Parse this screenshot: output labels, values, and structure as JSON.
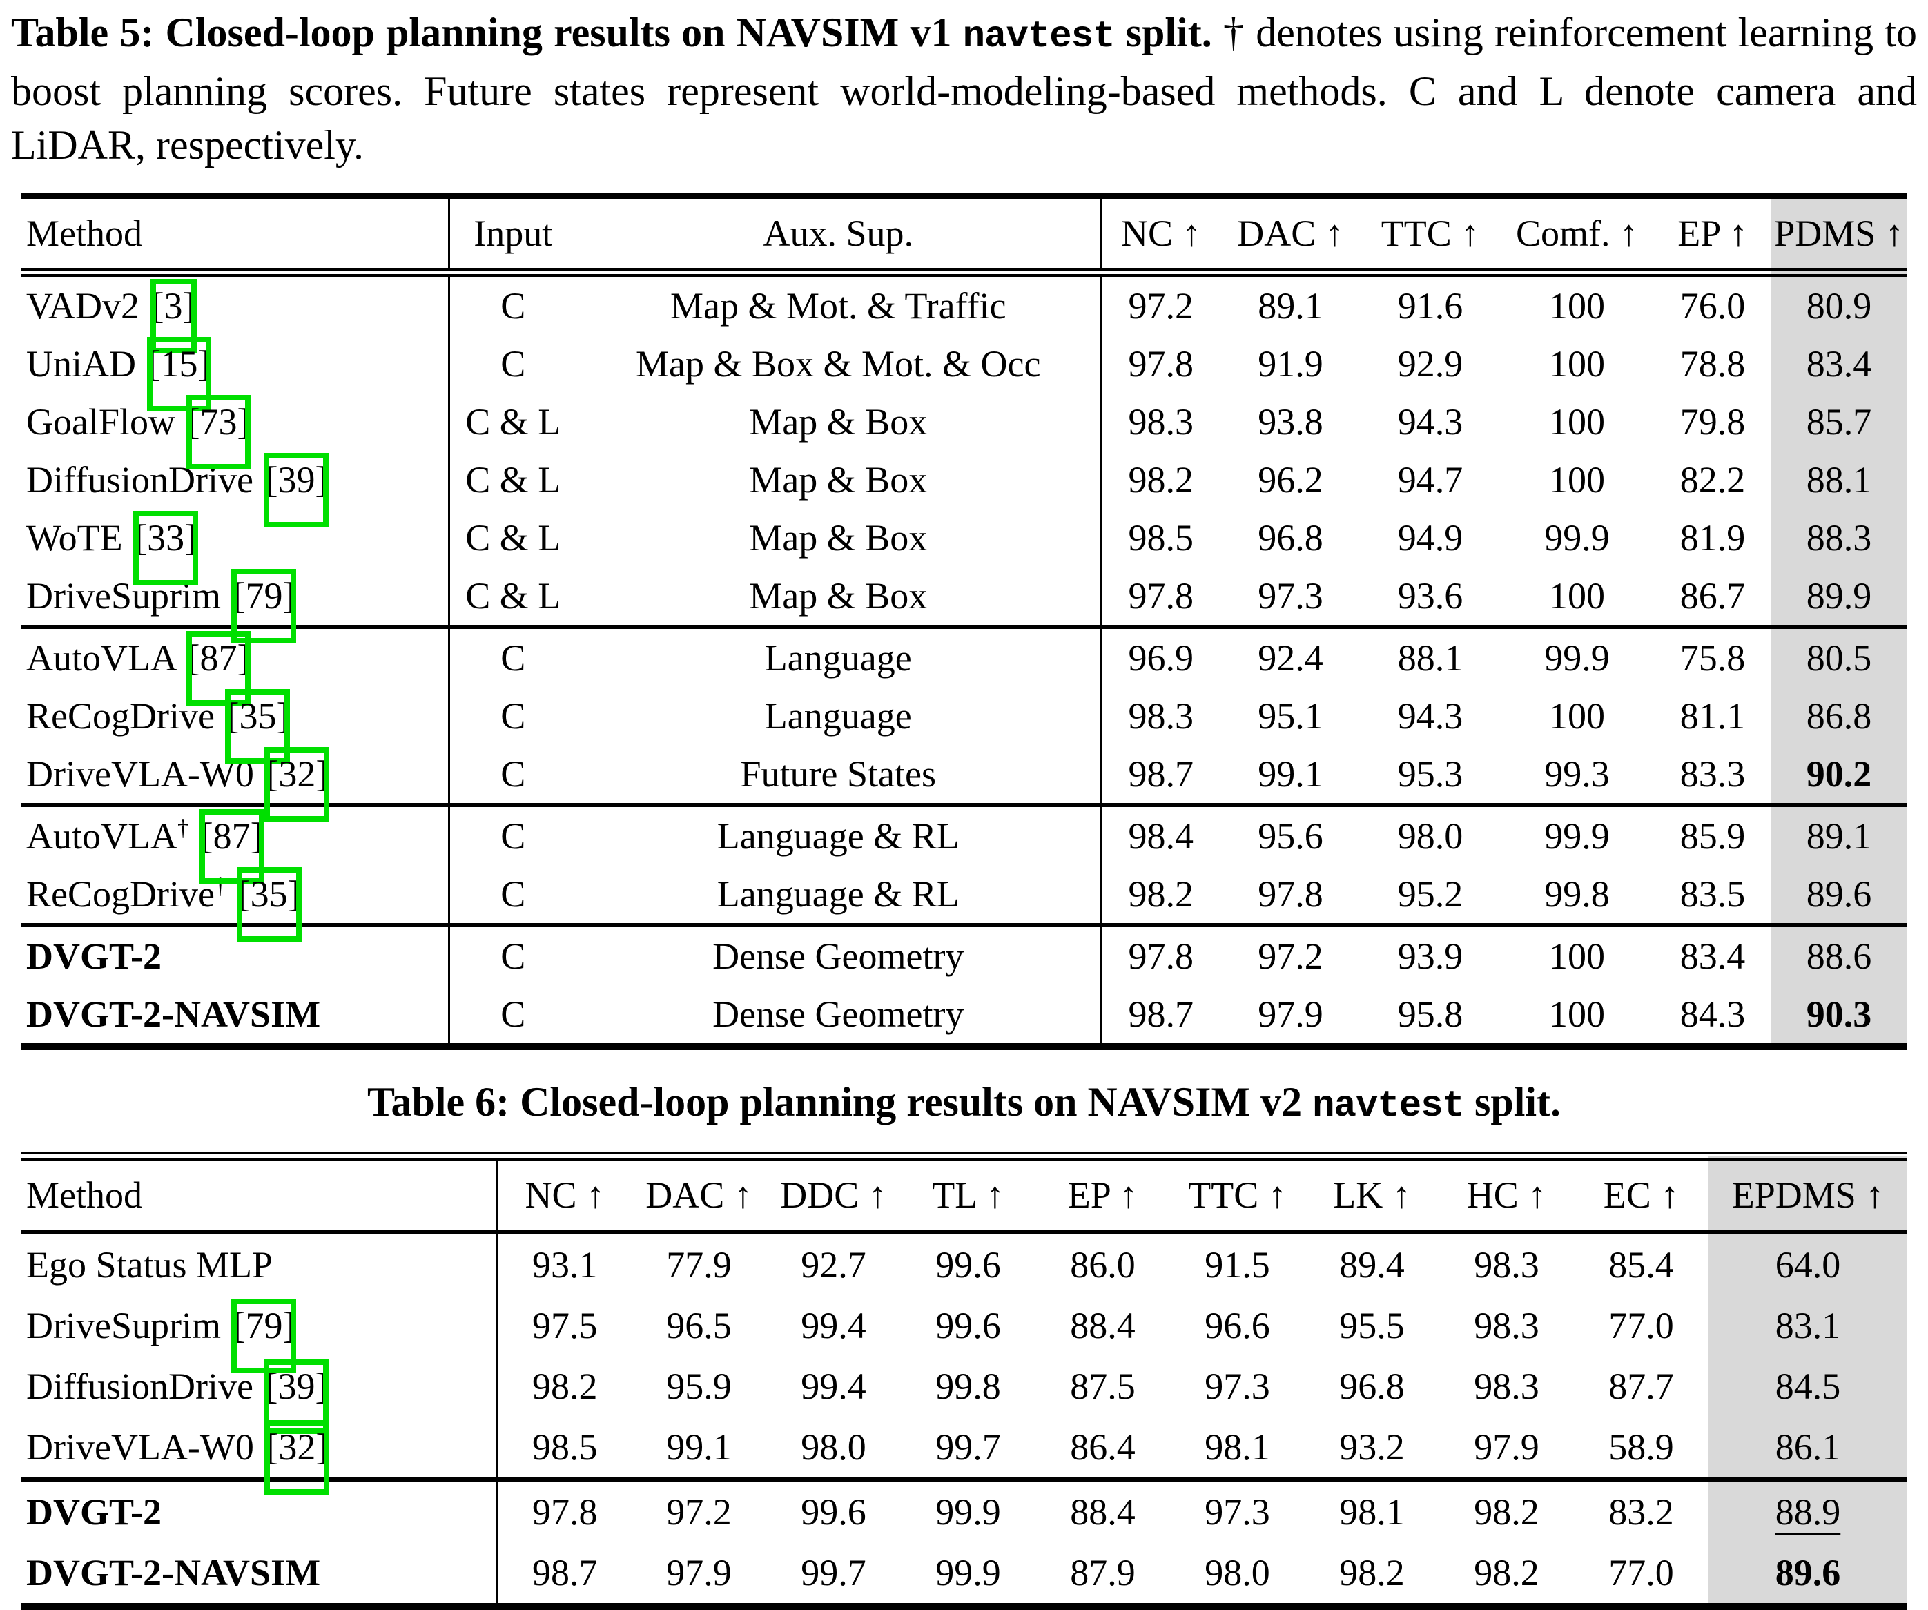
{
  "colors": {
    "highlight_column": "#d9d9d9",
    "citation_box": "#00df00",
    "rule": "#000000"
  },
  "table5": {
    "caption": {
      "bold_main": "Table 5: Closed-loop planning results on NAVSIM v1 ",
      "code": "navtest",
      "bold_tail": " split.",
      "normal": " † denotes using reinforcement learning to boost planning scores. Future states represent world-modeling-based methods. C and L denote camera and LiDAR, respectively."
    },
    "columns": [
      "Method",
      "Input",
      "Aux. Sup.",
      "NC ↑",
      "DAC ↑",
      "TTC ↑",
      "Comf. ↑",
      "EP ↑",
      "PDMS ↑"
    ],
    "groups": [
      {
        "rows": [
          {
            "method": "VADv2",
            "cite": "3",
            "input": "C",
            "aux": "Map & Mot. & Traffic",
            "values": [
              "97.2",
              "89.1",
              "91.6",
              "100",
              "76.0"
            ],
            "score": "80.9"
          },
          {
            "method": "UniAD",
            "cite": "15",
            "input": "C",
            "aux": "Map & Box & Mot. & Occ",
            "values": [
              "97.8",
              "91.9",
              "92.9",
              "100",
              "78.8"
            ],
            "score": "83.4"
          },
          {
            "method": "GoalFlow",
            "cite": "73",
            "input": "C & L",
            "aux": "Map & Box",
            "values": [
              "98.3",
              "93.8",
              "94.3",
              "100",
              "79.8"
            ],
            "score": "85.7"
          },
          {
            "method": "DiffusionDrive",
            "cite": "39",
            "input": "C & L",
            "aux": "Map & Box",
            "values": [
              "98.2",
              "96.2",
              "94.7",
              "100",
              "82.2"
            ],
            "score": "88.1"
          },
          {
            "method": "WoTE",
            "cite": "33",
            "input": "C & L",
            "aux": "Map & Box",
            "values": [
              "98.5",
              "96.8",
              "94.9",
              "99.9",
              "81.9"
            ],
            "score": "88.3"
          },
          {
            "method": "DriveSuprim",
            "cite": "79",
            "input": "C & L",
            "aux": "Map & Box",
            "values": [
              "97.8",
              "97.3",
              "93.6",
              "100",
              "86.7"
            ],
            "score": "89.9"
          }
        ]
      },
      {
        "rows": [
          {
            "method": "AutoVLA",
            "cite": "87",
            "input": "C",
            "aux": "Language",
            "values": [
              "96.9",
              "92.4",
              "88.1",
              "99.9",
              "75.8"
            ],
            "score": "80.5"
          },
          {
            "method": "ReCogDrive",
            "cite": "35",
            "input": "C",
            "aux": "Language",
            "values": [
              "98.3",
              "95.1",
              "94.3",
              "100",
              "81.1"
            ],
            "score": "86.8"
          },
          {
            "method": "DriveVLA-W0",
            "cite": "32",
            "input": "C",
            "aux": "Future States",
            "values": [
              "98.7",
              "99.1",
              "95.3",
              "99.3",
              "83.3"
            ],
            "score": "90.2",
            "score_bold": true
          }
        ]
      },
      {
        "rows": [
          {
            "method": "AutoVLA",
            "dagger": true,
            "cite": "87",
            "input": "C",
            "aux": "Language & RL",
            "values": [
              "98.4",
              "95.6",
              "98.0",
              "99.9",
              "85.9"
            ],
            "score": "89.1"
          },
          {
            "method": "ReCogDrive",
            "dagger": true,
            "cite": "35",
            "input": "C",
            "aux": "Language & RL",
            "values": [
              "98.2",
              "97.8",
              "95.2",
              "99.8",
              "83.5"
            ],
            "score": "89.6"
          }
        ]
      },
      {
        "rows": [
          {
            "method": "DVGT-2",
            "method_bold": true,
            "input": "C",
            "aux": "Dense Geometry",
            "values": [
              "97.8",
              "97.2",
              "93.9",
              "100",
              "83.4"
            ],
            "score": "88.6"
          },
          {
            "method": "DVGT-2-NAVSIM",
            "method_bold": true,
            "input": "C",
            "aux": "Dense Geometry",
            "values": [
              "98.7",
              "97.9",
              "95.8",
              "100",
              "84.3"
            ],
            "score": "90.3",
            "score_bold": true
          }
        ]
      }
    ]
  },
  "table6": {
    "caption": {
      "bold_main": "Table 6: Closed-loop planning results on NAVSIM v2 ",
      "code": "navtest",
      "bold_tail": " split."
    },
    "columns": [
      "Method",
      "NC ↑",
      "DAC ↑",
      "DDC ↑",
      "TL ↑",
      "EP ↑",
      "TTC ↑",
      "LK ↑",
      "HC ↑",
      "EC ↑",
      "EPDMS ↑"
    ],
    "groups": [
      {
        "rows": [
          {
            "method": "Ego Status MLP",
            "values": [
              "93.1",
              "77.9",
              "92.7",
              "99.6",
              "86.0",
              "91.5",
              "89.4",
              "98.3",
              "85.4"
            ],
            "score": "64.0"
          },
          {
            "method": "DriveSuprim",
            "cite": "79",
            "values": [
              "97.5",
              "96.5",
              "99.4",
              "99.6",
              "88.4",
              "96.6",
              "95.5",
              "98.3",
              "77.0"
            ],
            "score": "83.1"
          },
          {
            "method": "DiffusionDrive",
            "cite": "39",
            "values": [
              "98.2",
              "95.9",
              "99.4",
              "99.8",
              "87.5",
              "97.3",
              "96.8",
              "98.3",
              "87.7"
            ],
            "score": "84.5"
          },
          {
            "method": "DriveVLA-W0",
            "cite": "32",
            "values": [
              "98.5",
              "99.1",
              "98.0",
              "99.7",
              "86.4",
              "98.1",
              "93.2",
              "97.9",
              "58.9"
            ],
            "score": "86.1"
          }
        ]
      },
      {
        "rows": [
          {
            "method": "DVGT-2",
            "method_bold": true,
            "values": [
              "97.8",
              "97.2",
              "99.6",
              "99.9",
              "88.4",
              "97.3",
              "98.1",
              "98.2",
              "83.2"
            ],
            "score": "88.9",
            "score_underline": true
          },
          {
            "method": "DVGT-2-NAVSIM",
            "method_bold": true,
            "values": [
              "98.7",
              "97.9",
              "99.7",
              "99.9",
              "87.9",
              "98.0",
              "98.2",
              "98.2",
              "77.0"
            ],
            "score": "89.6",
            "score_bold": true
          }
        ]
      }
    ]
  }
}
